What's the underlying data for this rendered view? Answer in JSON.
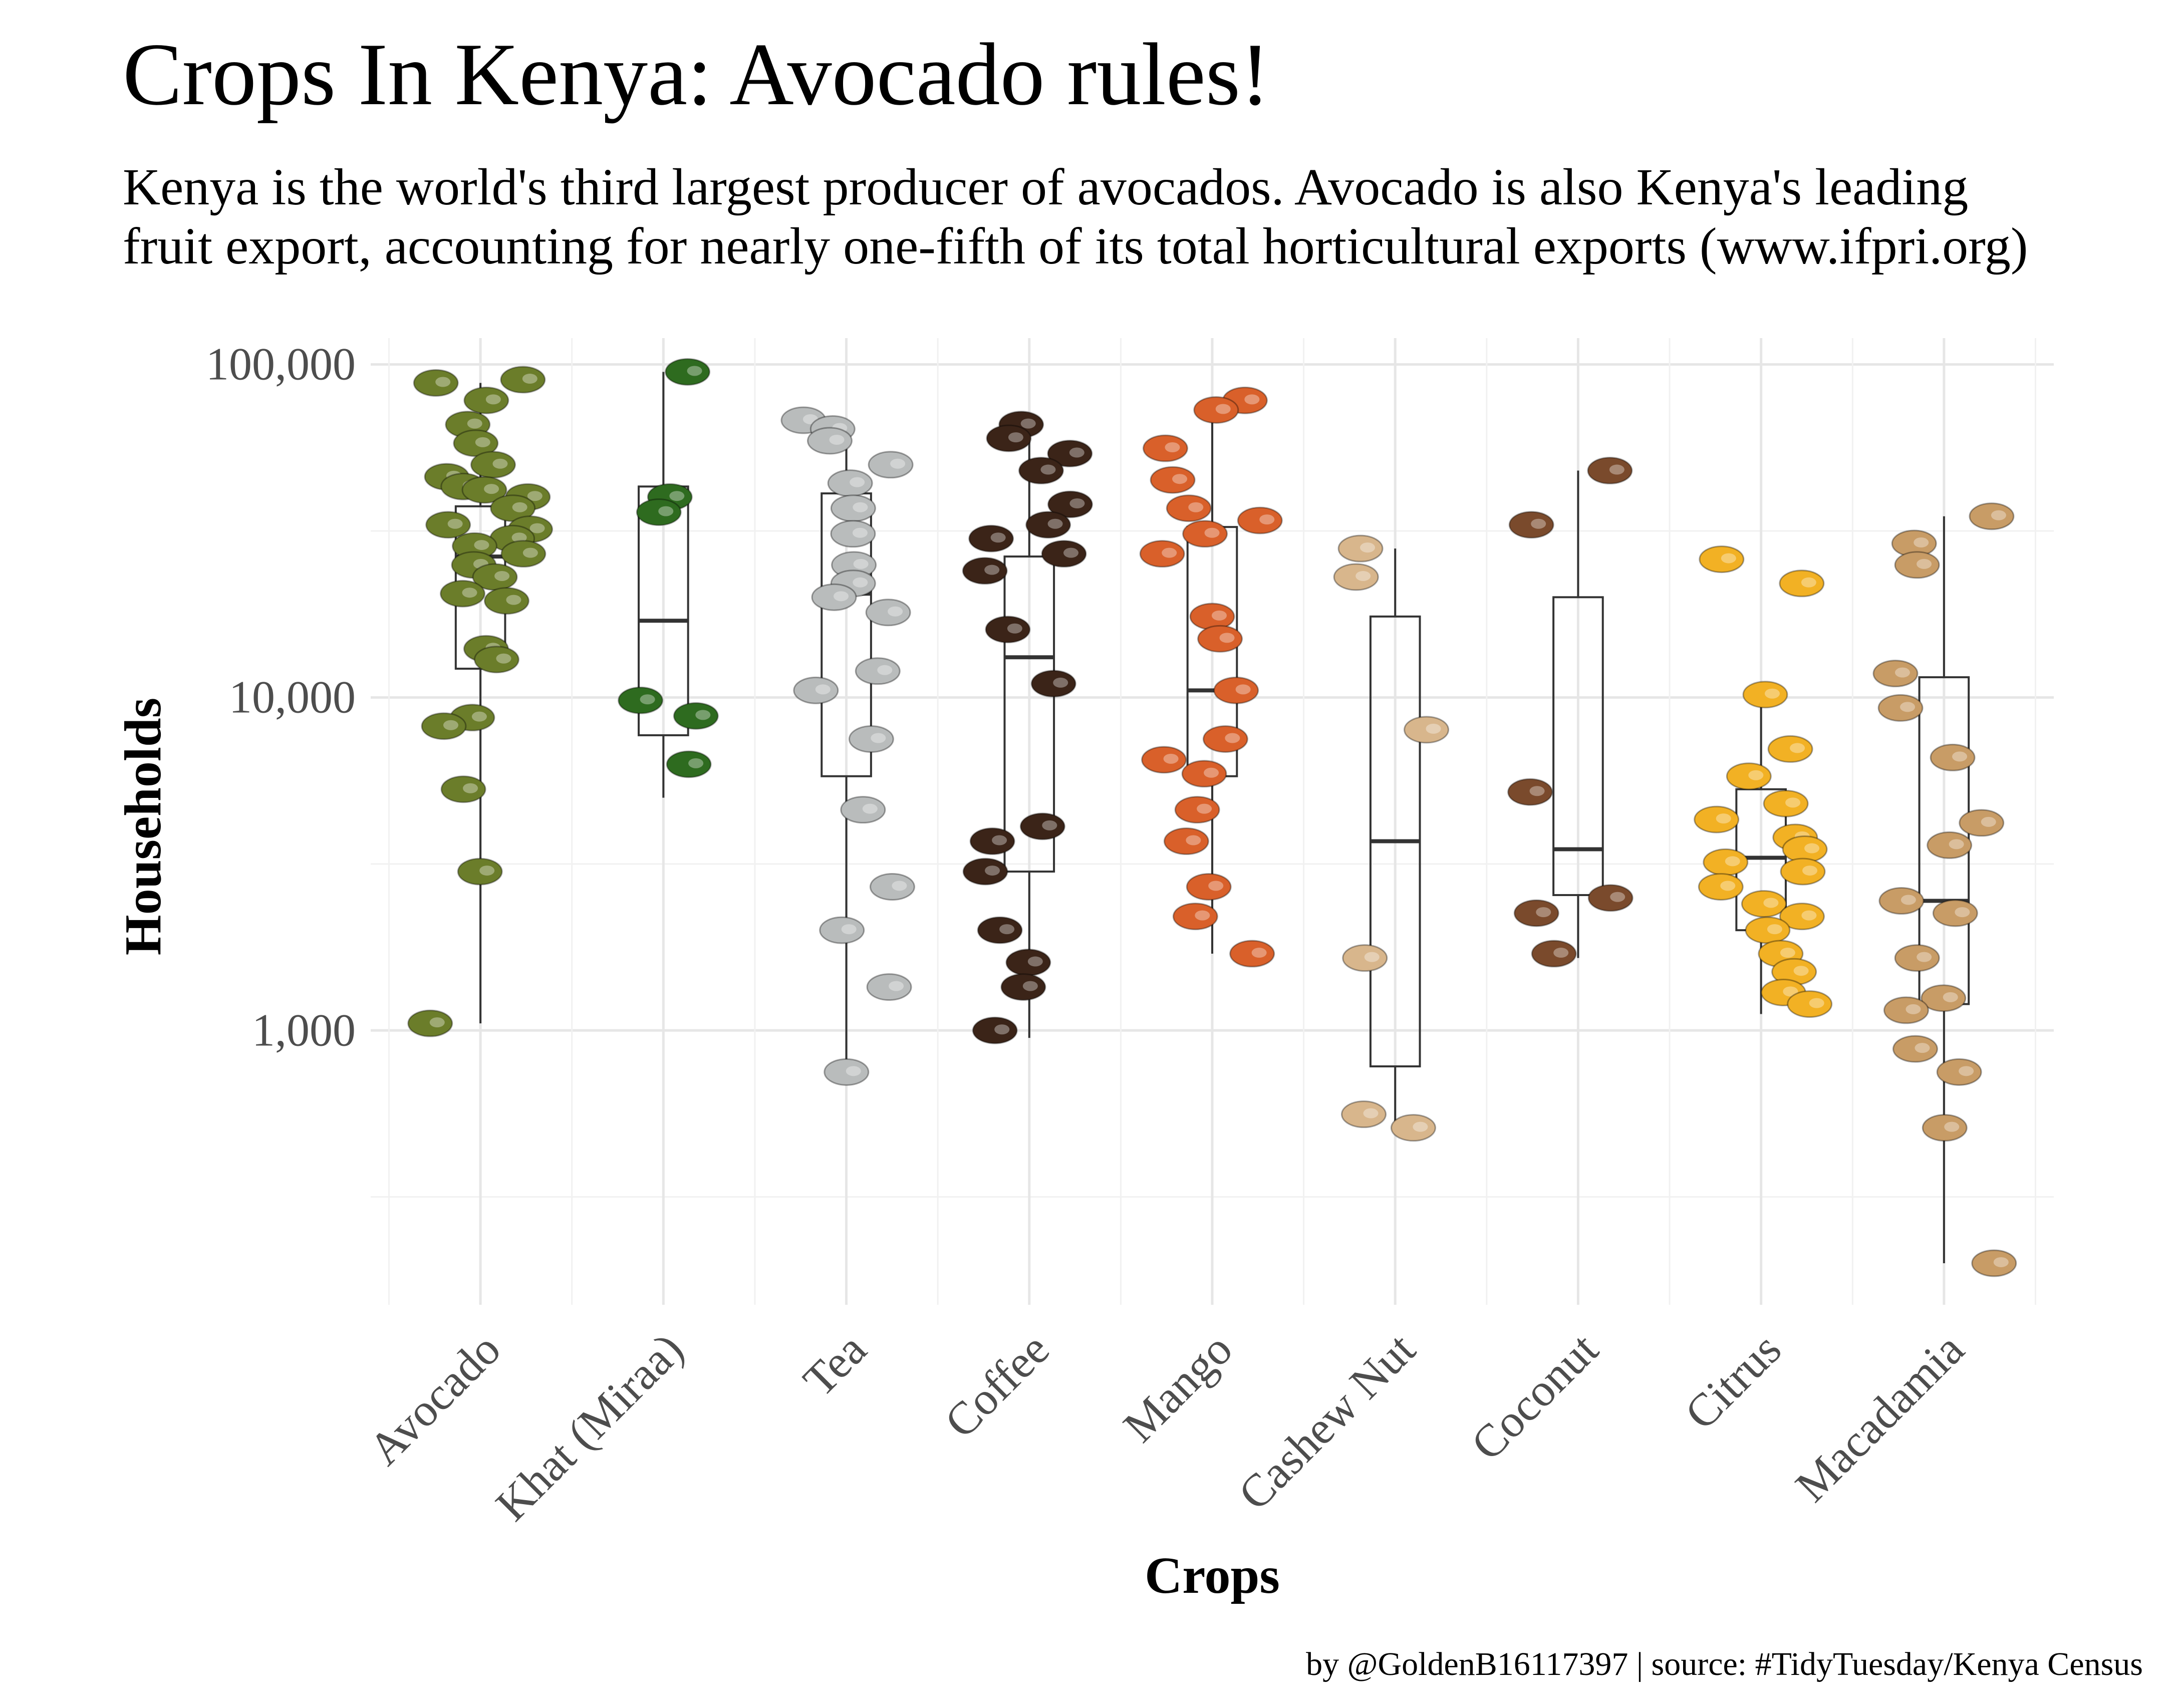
{
  "title": "Crops In Kenya: Avocado rules!",
  "subtitle_lines": [
    "Kenya is the world's third largest producer of avocados. Avocado is also Kenya's leading",
    "fruit export, accounting for nearly one-fifth of its total horticultural exports (www.ifpri.org)"
  ],
  "caption": "by @GoldenB16117397 | source: #TidyTuesday/Kenya Census",
  "chart_data": {
    "type": "box+scatter",
    "xlabel": "Crops",
    "ylabel": "Households",
    "y_scale": "log10",
    "ylim": [
      150,
      120000
    ],
    "y_ticks": [
      1000,
      10000,
      100000
    ],
    "y_tick_labels": [
      "1,000",
      "10,000",
      "100,000"
    ],
    "grid": true,
    "categories": [
      "Avocado",
      "Khat (Miraa)",
      "Tea",
      "Coffee",
      "Mango",
      "Cashew Nut",
      "Coconut",
      "Citrus",
      "Macadamia"
    ],
    "series": [
      {
        "category": "Avocado",
        "color": "#6b7d2a",
        "box": {
          "min": 1050,
          "q1": 12200,
          "median": 26500,
          "q3": 37500,
          "max": 88000
        },
        "points": [
          90000,
          88000,
          78000,
          66000,
          58000,
          50000,
          46000,
          43000,
          42000,
          40000,
          37000,
          33000,
          32000,
          30000,
          28500,
          27000,
          25000,
          23000,
          20500,
          19500,
          14000,
          13000,
          8700,
          8200,
          5300,
          3000,
          1050
        ]
      },
      {
        "category": "Khat (Miraa)",
        "color": "#2e6b1f",
        "box": {
          "min": 5000,
          "q1": 7700,
          "median": 17000,
          "q3": 43000,
          "max": 95000
        },
        "points": [
          95000,
          40000,
          36000,
          9800,
          8800,
          6300
        ]
      },
      {
        "category": "Tea",
        "color": "#b9bcbc",
        "box": {
          "min": 750,
          "q1": 5800,
          "median": 20500,
          "q3": 41000,
          "max": 68000
        },
        "points": [
          68000,
          64000,
          59000,
          50000,
          44000,
          37000,
          31000,
          25000,
          22000,
          20000,
          18000,
          12000,
          10500,
          7500,
          4600,
          2700,
          2000,
          1350,
          750
        ]
      },
      {
        "category": "Coffee",
        "color": "#3b2418",
        "box": {
          "min": 950,
          "q1": 3000,
          "median": 13200,
          "q3": 26500,
          "max": 66000
        },
        "points": [
          66000,
          60000,
          54000,
          48000,
          38000,
          33000,
          30000,
          27000,
          24000,
          16000,
          11000,
          4100,
          3700,
          3000,
          2000,
          1600,
          1350,
          1000
        ]
      },
      {
        "category": "Mango",
        "color": "#d9602a",
        "box": {
          "min": 1700,
          "q1": 5800,
          "median": 10500,
          "q3": 32500,
          "max": 75000
        },
        "points": [
          78000,
          73000,
          56000,
          45000,
          37000,
          34000,
          31000,
          27000,
          17500,
          15000,
          10500,
          7500,
          6500,
          5900,
          4600,
          3700,
          2700,
          2200,
          1700
        ]
      },
      {
        "category": "Cashew Nut",
        "color": "#d8b68c",
        "box": {
          "min": 500,
          "q1": 780,
          "median": 3700,
          "q3": 17500,
          "max": 28000
        },
        "points": [
          28000,
          23000,
          8000,
          1650,
          560,
          510
        ]
      },
      {
        "category": "Coconut",
        "color": "#7a4a2c",
        "box": {
          "min": 1650,
          "q1": 2550,
          "median": 3500,
          "q3": 20000,
          "max": 48000
        },
        "points": [
          48000,
          33000,
          5200,
          2500,
          2250,
          1700
        ]
      },
      {
        "category": "Citrus",
        "color": "#f2b124",
        "box": {
          "min": 1120,
          "q1": 2000,
          "median": 3300,
          "q3": 5300,
          "max": 9800
        },
        "points": [
          26000,
          22000,
          10200,
          7000,
          5800,
          4800,
          4300,
          3800,
          3500,
          3200,
          3000,
          2700,
          2400,
          2200,
          2000,
          1700,
          1500,
          1300,
          1200
        ]
      },
      {
        "category": "Macadamia",
        "color": "#c89c66",
        "box": {
          "min": 200,
          "q1": 1200,
          "median": 2450,
          "q3": 11500,
          "max": 35000
        },
        "points": [
          35000,
          29000,
          25000,
          11800,
          9300,
          6600,
          4200,
          3600,
          2450,
          2250,
          1650,
          1250,
          1150,
          880,
          750,
          510,
          200
        ]
      }
    ]
  }
}
